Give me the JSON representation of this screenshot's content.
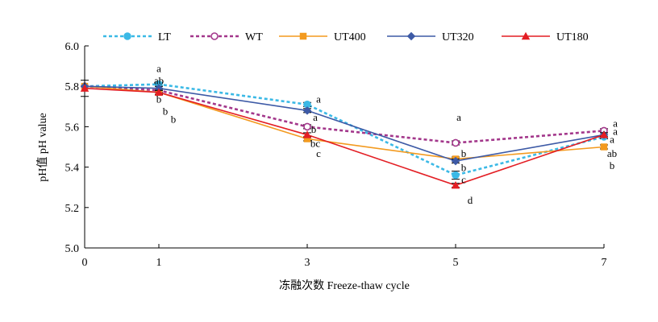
{
  "chart_data": {
    "type": "line",
    "xlabel": "冻融次数 Freeze-thaw cycle",
    "ylabel": "pH值 pH value",
    "x": [
      0,
      1,
      3,
      5,
      7
    ],
    "ylim": [
      5.0,
      6.0
    ],
    "yticks": [
      "5.0",
      "5.2",
      "5.4",
      "5.6",
      "5.8",
      "6.0"
    ],
    "xticks": [
      "0",
      "1",
      "3",
      "5",
      "7"
    ],
    "grid": false,
    "legend_position": "top",
    "series": [
      {
        "name": "LT",
        "values": [
          5.8,
          5.81,
          5.71,
          5.36,
          5.55
        ],
        "color": "#3bb9e6",
        "dash": "dotted",
        "marker": "circle-filled",
        "error": [
          0,
          0.01,
          0.01,
          0.02,
          0.01
        ]
      },
      {
        "name": "WT",
        "values": [
          5.8,
          5.78,
          5.6,
          5.52,
          5.58
        ],
        "color": "#a3378b",
        "dash": "dotted",
        "marker": "circle-open",
        "error": [
          0,
          0.01,
          0.01,
          0.01,
          0.01
        ]
      },
      {
        "name": "UT400",
        "values": [
          5.8,
          5.77,
          5.54,
          5.44,
          5.5
        ],
        "color": "#f39a1f",
        "dash": "solid",
        "marker": "square",
        "error": [
          0,
          0.01,
          0.01,
          0.01,
          0.01
        ]
      },
      {
        "name": "UT320",
        "values": [
          5.8,
          5.79,
          5.68,
          5.43,
          5.56
        ],
        "color": "#3d5aa6",
        "dash": "solid",
        "marker": "diamond",
        "error": [
          0,
          0.01,
          0.01,
          0.01,
          0.01
        ]
      },
      {
        "name": "UT180",
        "values": [
          5.79,
          5.77,
          5.56,
          5.31,
          5.56
        ],
        "color": "#e31e24",
        "dash": "solid",
        "marker": "triangle",
        "error": [
          0.04,
          0.01,
          0.01,
          0.01,
          0.01
        ]
      }
    ],
    "annotations": [
      {
        "x": 1,
        "labels": [
          "a",
          "ab",
          "b",
          "b",
          "b"
        ],
        "y": [
          5.89,
          5.83,
          5.74,
          5.68,
          5.64
        ],
        "dx": [
          0,
          0,
          0,
          8,
          18
        ]
      },
      {
        "x": 3,
        "labels": [
          "a",
          "a",
          "b",
          "bc",
          "c"
        ],
        "y": [
          5.74,
          5.65,
          5.59,
          5.52,
          5.47
        ],
        "dx": [
          14,
          10,
          8,
          10,
          14
        ]
      },
      {
        "x": 5,
        "labels": [
          "a",
          "b",
          "b",
          "c",
          "d"
        ],
        "y": [
          5.65,
          5.47,
          5.4,
          5.34,
          5.24
        ],
        "dx": [
          4,
          10,
          10,
          10,
          18
        ]
      },
      {
        "x": 7,
        "labels": [
          "a",
          "a",
          "a",
          "ab",
          "b"
        ],
        "y": [
          5.62,
          5.58,
          5.54,
          5.47,
          5.41
        ],
        "dx": [
          14,
          14,
          10,
          10,
          10
        ]
      }
    ]
  }
}
